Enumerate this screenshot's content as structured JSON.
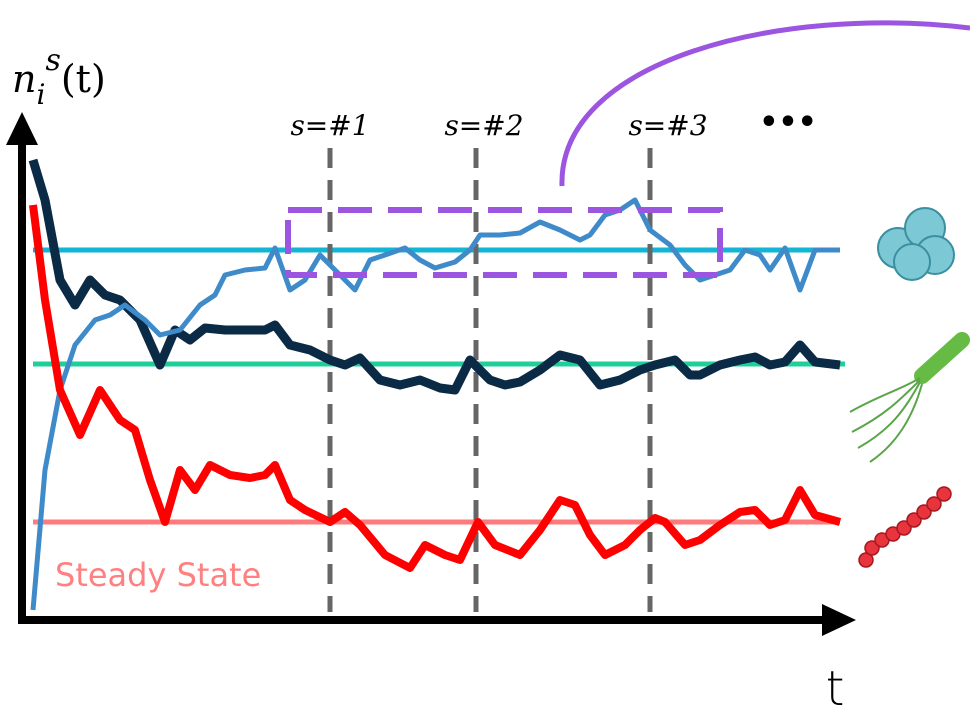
{
  "y_axis_label": {
    "base": "n",
    "subscript": "i",
    "superscript": "s",
    "argument": "(t)"
  },
  "x_axis_label": "t",
  "sample_markers": [
    "s=#1",
    "s=#2",
    "s=#3"
  ],
  "ellipsis": "•••",
  "steady_state_label": "Steady State"
}
